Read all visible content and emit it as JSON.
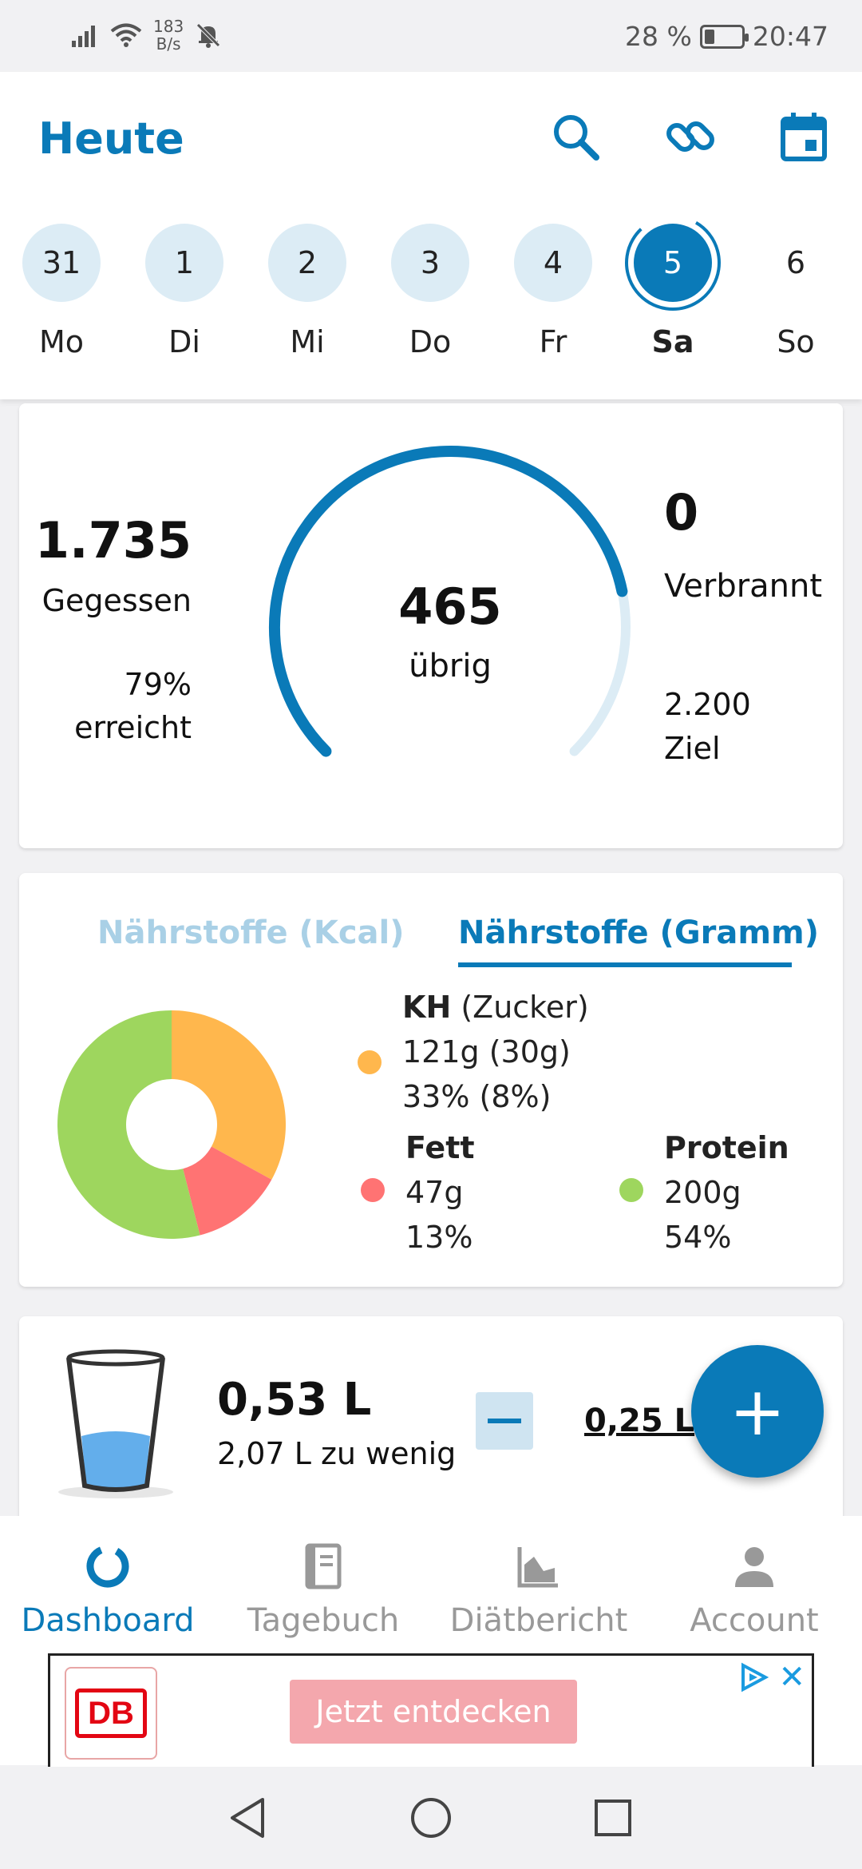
{
  "status_bar": {
    "net_rate_value": "183",
    "net_rate_unit": "B/s",
    "battery": "28 %",
    "time": "20:47"
  },
  "header": {
    "title": "Heute"
  },
  "days": [
    {
      "num": "31",
      "label": "Mo"
    },
    {
      "num": "1",
      "label": "Di"
    },
    {
      "num": "2",
      "label": "Mi"
    },
    {
      "num": "3",
      "label": "Do"
    },
    {
      "num": "4",
      "label": "Fr"
    },
    {
      "num": "5",
      "label": "Sa",
      "active": true
    },
    {
      "num": "6",
      "label": "So"
    }
  ],
  "calories": {
    "eaten_value": "1.735",
    "eaten_label": "Gegessen",
    "percent_value": "79%",
    "percent_label": "erreicht",
    "remaining_value": "465",
    "remaining_label": "übrig",
    "burned_value": "0",
    "burned_label": "Verbrannt",
    "goal_value": "2.200",
    "goal_label": "Ziel",
    "progress_fraction": 0.79
  },
  "nutrients": {
    "tab_kcal": "Nährstoffe (Kcal)",
    "tab_gram": "Nährstoffe (Gramm)",
    "carbs": {
      "title": "KH",
      "subtitle": "(Zucker)",
      "amount": "121g (30g)",
      "percent": "33% (8%)",
      "color": "#ffb74d"
    },
    "fat": {
      "title": "Fett",
      "amount": "47g",
      "percent": "13%",
      "color": "#ff7373"
    },
    "protein": {
      "title": "Protein",
      "amount": "200g",
      "percent": "54%",
      "color": "#9ed65e"
    },
    "shares": [
      33,
      13,
      54
    ]
  },
  "water": {
    "amount": "0,53 L",
    "difference": "2,07 L zu wenig",
    "step": "0,25 L",
    "fill_fraction": 0.3
  },
  "fab": {
    "label": "+"
  },
  "nav": {
    "dashboard": "Dashboard",
    "diary": "Tagebuch",
    "report": "Diätbericht",
    "account": "Account"
  },
  "ad": {
    "logo_text": "DB",
    "cta": "Jetzt entdecken",
    "close": "✕"
  },
  "colors": {
    "accent": "#0a7ab8",
    "accent_light": "#dcecf5"
  }
}
